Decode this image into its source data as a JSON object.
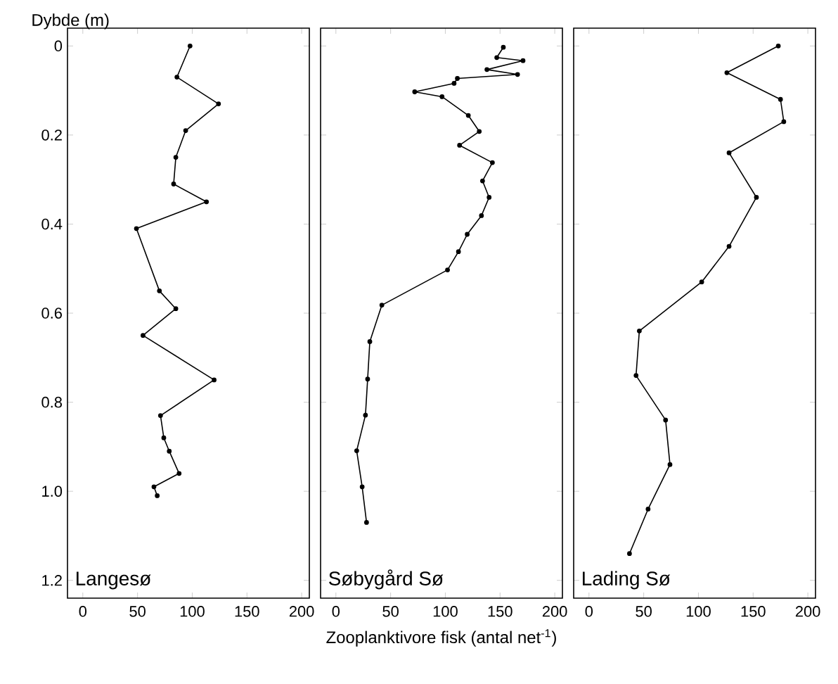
{
  "chart_data": [
    {
      "type": "line",
      "title": "Langesø",
      "ylabel": "Dybde (m)",
      "xlim": [
        -14,
        207
      ],
      "ylim": [
        1.24,
        -0.04
      ],
      "xticks": [
        0,
        50,
        100,
        150,
        200
      ],
      "yticks": [
        0,
        0.2,
        0.4,
        0.6,
        0.8,
        {
          "value": 1.0,
          "label": "1.0"
        },
        1.2
      ],
      "marker": "circle",
      "line_style": "solid",
      "series": [
        {
          "color": "#000000",
          "x": [
            98,
            86,
            124,
            94,
            85,
            83,
            113,
            49,
            70,
            85,
            55,
            120,
            71,
            74,
            79,
            88,
            65,
            68
          ],
          "values": [
            0,
            0.07,
            0.13,
            0.19,
            0.25,
            0.31,
            0.35,
            0.41,
            0.55,
            0.59,
            0.65,
            0.75,
            0.83,
            0.88,
            0.91,
            0.96,
            0.99,
            1.01
          ]
        }
      ]
    },
    {
      "type": "line",
      "title": "Søbygård Sø",
      "xlabel": "Zooplanktivore fisk (antal net$^{-1}$)",
      "xlim": [
        -14,
        207
      ],
      "ylim": [
        1.24,
        -0.04
      ],
      "xticks": [
        0,
        50,
        100,
        150,
        200
      ],
      "yticks": [
        0,
        0.2,
        0.4,
        0.6,
        0.8,
        1.0,
        1.2
      ],
      "tick_labels": "x",
      "marker": "circle",
      "line_style": "solid",
      "series": [
        {
          "color": "#000000",
          "x": [
            153,
            147,
            171,
            138,
            166,
            111,
            108,
            72,
            97,
            121,
            131,
            113,
            143,
            134,
            140,
            133,
            120,
            112,
            102,
            42,
            31,
            29,
            27,
            19,
            24,
            28
          ],
          "values": [
            0.003,
            0.026,
            0.033,
            0.053,
            0.064,
            0.073,
            0.084,
            0.103,
            0.114,
            0.156,
            0.192,
            0.223,
            0.262,
            0.303,
            0.34,
            0.381,
            0.423,
            0.462,
            0.503,
            0.582,
            0.664,
            0.748,
            0.829,
            0.909,
            0.99,
            1.07
          ]
        }
      ]
    },
    {
      "type": "line",
      "title": "Lading Sø",
      "xlim": [
        -14,
        207
      ],
      "ylim": [
        1.24,
        -0.04
      ],
      "xticks": [
        0,
        50,
        100,
        150,
        200
      ],
      "yticks": [
        0,
        0.2,
        0.4,
        0.6,
        0.8,
        1.0,
        1.2
      ],
      "tick_labels": "x",
      "marker": "circle",
      "line_style": "solid",
      "series": [
        {
          "color": "#000000",
          "x": [
            173,
            126,
            175,
            178,
            128,
            153,
            128,
            103,
            46,
            43,
            70,
            74,
            54,
            37
          ],
          "values": [
            0,
            0.06,
            0.12,
            0.17,
            0.24,
            0.34,
            0.45,
            0.53,
            0.64,
            0.74,
            0.84,
            0.94,
            1.04,
            1.14
          ]
        }
      ]
    }
  ]
}
